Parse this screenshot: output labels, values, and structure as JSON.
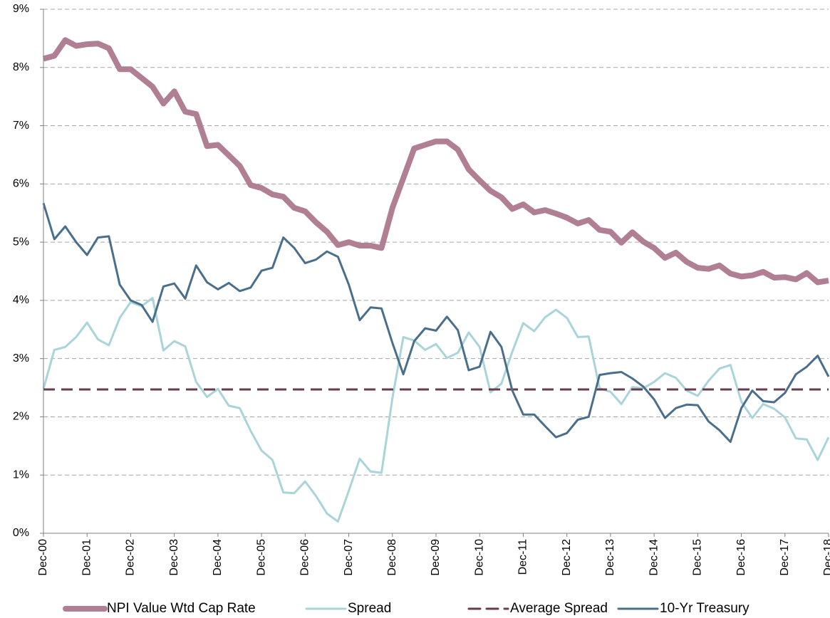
{
  "chart_data": {
    "type": "line",
    "categories": [
      "Dec-00",
      null,
      null,
      null,
      "Dec-01",
      null,
      null,
      null,
      "Dec-02",
      null,
      null,
      null,
      "Dec-03",
      null,
      null,
      null,
      "Dec-04",
      null,
      null,
      null,
      "Dec-05",
      null,
      null,
      null,
      "Dec-06",
      null,
      null,
      null,
      "Dec-07",
      null,
      null,
      null,
      "Dec-08",
      null,
      null,
      null,
      "Dec-09",
      null,
      null,
      null,
      "Dec-10",
      null,
      null,
      null,
      "Dec-11",
      null,
      null,
      null,
      "Dec-12",
      null,
      null,
      null,
      "Dec-13",
      null,
      null,
      null,
      "Dec-14",
      null,
      null,
      null,
      "Dec-15",
      null,
      null,
      null,
      "Dec-16",
      null,
      null,
      null,
      "Dec-17",
      null,
      null,
      null,
      "Dec-18"
    ],
    "series": [
      {
        "name": "NPI Value Wtd Cap Rate",
        "color": "#b07f94",
        "line_width": 8,
        "line_style": "solid",
        "values": [
          8.15,
          8.2,
          8.47,
          8.37,
          8.4,
          8.41,
          8.33,
          7.97,
          7.97,
          7.82,
          7.67,
          7.38,
          7.59,
          7.24,
          7.2,
          6.65,
          6.67,
          6.49,
          6.31,
          5.98,
          5.93,
          5.82,
          5.78,
          5.59,
          5.53,
          5.34,
          5.18,
          4.95,
          5.0,
          4.94,
          4.94,
          4.9,
          5.59,
          6.1,
          6.61,
          6.67,
          6.73,
          6.73,
          6.59,
          6.25,
          6.06,
          5.88,
          5.77,
          5.57,
          5.65,
          5.51,
          5.55,
          5.49,
          5.42,
          5.32,
          5.38,
          5.21,
          5.18,
          4.99,
          5.17,
          5.01,
          4.9,
          4.73,
          4.82,
          4.66,
          4.56,
          4.54,
          4.6,
          4.46,
          4.41,
          4.43,
          4.49,
          4.39,
          4.4,
          4.36,
          4.47,
          4.31,
          4.34
        ]
      },
      {
        "name": "Spread",
        "color": "#a9d4d9",
        "line_width": 3,
        "line_style": "solid",
        "values": [
          2.48,
          3.15,
          3.2,
          3.37,
          3.62,
          3.33,
          3.23,
          3.7,
          3.97,
          3.9,
          4.04,
          3.14,
          3.3,
          3.21,
          2.6,
          2.34,
          2.48,
          2.19,
          2.15,
          1.76,
          1.42,
          1.26,
          0.7,
          0.69,
          0.89,
          0.64,
          0.34,
          0.2,
          0.73,
          1.28,
          1.06,
          1.04,
          2.32,
          3.37,
          3.31,
          3.15,
          3.25,
          3.01,
          3.1,
          3.45,
          3.2,
          2.42,
          2.57,
          3.12,
          3.61,
          3.47,
          3.71,
          3.84,
          3.7,
          3.37,
          3.38,
          2.49,
          2.43,
          2.22,
          2.51,
          2.49,
          2.6,
          2.75,
          2.67,
          2.45,
          2.36,
          2.62,
          2.83,
          2.89,
          2.26,
          1.98,
          2.22,
          2.14,
          1.99,
          1.63,
          1.61,
          1.26,
          1.65
        ]
      },
      {
        "name": "Average Spread",
        "color": "#6b3a4e",
        "line_width": 3,
        "line_style": "dashed",
        "values": [
          2.47,
          2.47,
          2.47,
          2.47,
          2.47,
          2.47,
          2.47,
          2.47,
          2.47,
          2.47,
          2.47,
          2.47,
          2.47,
          2.47,
          2.47,
          2.47,
          2.47,
          2.47,
          2.47,
          2.47,
          2.47,
          2.47,
          2.47,
          2.47,
          2.47,
          2.47,
          2.47,
          2.47,
          2.47,
          2.47,
          2.47,
          2.47,
          2.47,
          2.47,
          2.47,
          2.47,
          2.47,
          2.47,
          2.47,
          2.47,
          2.47,
          2.47,
          2.47,
          2.47,
          2.47,
          2.47,
          2.47,
          2.47,
          2.47,
          2.47,
          2.47,
          2.47,
          2.47,
          2.47,
          2.47,
          2.47,
          2.47,
          2.47,
          2.47,
          2.47,
          2.47,
          2.47,
          2.47,
          2.47,
          2.47,
          2.47,
          2.47,
          2.47,
          2.47,
          2.47,
          2.47,
          2.47,
          2.47
        ]
      },
      {
        "name": "10-Yr Treasury",
        "color": "#4a6f8c",
        "line_width": 3,
        "line_style": "solid",
        "values": [
          5.67,
          5.05,
          5.27,
          5.0,
          4.78,
          5.08,
          5.1,
          4.27,
          4.0,
          3.92,
          3.63,
          4.24,
          4.29,
          4.03,
          4.6,
          4.31,
          4.19,
          4.3,
          4.16,
          4.22,
          4.51,
          4.56,
          5.08,
          4.9,
          4.64,
          4.7,
          4.84,
          4.75,
          4.27,
          3.66,
          3.88,
          3.86,
          3.27,
          2.73,
          3.3,
          3.52,
          3.48,
          3.72,
          3.49,
          2.8,
          2.86,
          3.46,
          3.2,
          2.45,
          2.04,
          2.04,
          1.84,
          1.65,
          1.72,
          1.95,
          2.0,
          2.72,
          2.75,
          2.77,
          2.66,
          2.52,
          2.3,
          1.98,
          2.15,
          2.21,
          2.2,
          1.92,
          1.77,
          1.57,
          2.15,
          2.45,
          2.27,
          2.25,
          2.41,
          2.73,
          2.86,
          3.05,
          2.69
        ]
      }
    ],
    "ylim": [
      0,
      9
    ],
    "yticks": [
      {
        "value": 0,
        "label": "0%"
      },
      {
        "value": 1,
        "label": "1%"
      },
      {
        "value": 2,
        "label": "2%"
      },
      {
        "value": 3,
        "label": "3%"
      },
      {
        "value": 4,
        "label": "4%"
      },
      {
        "value": 5,
        "label": "5%"
      },
      {
        "value": 6,
        "label": "6%"
      },
      {
        "value": 7,
        "label": "7%"
      },
      {
        "value": 8,
        "label": "8%"
      },
      {
        "value": 9,
        "label": "9%"
      }
    ],
    "grid": true,
    "legend": "bottom"
  }
}
